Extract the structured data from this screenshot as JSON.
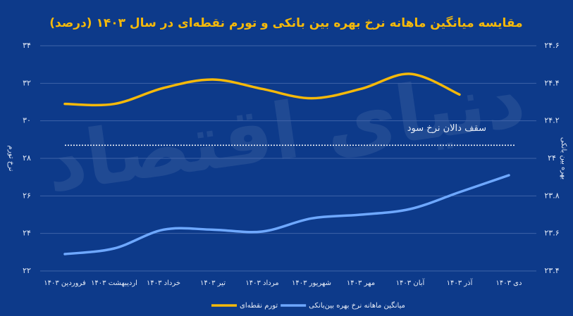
{
  "chart_data": {
    "type": "line",
    "title": "مقایسه میانگین ماهانه نرخ بهره بین بانکی و تورم نقطه‌ای در سال ۱۴۰۳ (درصد)",
    "watermark": "دنیای اقتصاد",
    "y_label": "نرخ تورم",
    "y2_label": "بهره بین بانکی",
    "categories": [
      "فروردین ۱۴۰۳",
      "اردیبهشت ۱۴۰۳",
      "خرداد ۱۴۰۳",
      "تیر ۱۴۰۳",
      "مرداد ۱۴۰۳",
      "شهریور ۱۴۰۳",
      "مهر ۱۴۰۳",
      "آبان ۱۴۰۳",
      "آذر ۱۴۰۳",
      "دی ۱۴۰۳"
    ],
    "series": [
      {
        "name": "تورم نقطه‌ای",
        "color": "#f5b90a",
        "axis": "y",
        "values": [
          30.9,
          30.9,
          31.75,
          32.2,
          31.7,
          31.2,
          31.7,
          32.5,
          31.4,
          null
        ]
      },
      {
        "name": "میانگین ماهانه نرخ بهره بین‌بانکی",
        "color": "#6ea8ff",
        "axis": "y2",
        "values": [
          23.49,
          23.52,
          23.62,
          23.62,
          23.61,
          23.68,
          23.7,
          23.73,
          23.82,
          23.91
        ]
      }
    ],
    "reference_line": {
      "label": "سقف دالان نرخ سود",
      "value": 24.07,
      "axis": "y2",
      "color": "#ffffff"
    },
    "ylim": [
      22,
      34
    ],
    "yticks": [
      {
        "value": 22,
        "label": "۲۲"
      },
      {
        "value": 24,
        "label": "۲۴"
      },
      {
        "value": 26,
        "label": "۲۶"
      },
      {
        "value": 28,
        "label": "۲۸"
      },
      {
        "value": 30,
        "label": "۳۰"
      },
      {
        "value": 32,
        "label": "۳۲"
      },
      {
        "value": 34,
        "label": "۳۴"
      }
    ],
    "y2lim": [
      23.4,
      24.6
    ],
    "y2ticks": [
      {
        "value": 23.4,
        "label": "۲۳.۴"
      },
      {
        "value": 23.6,
        "label": "۲۳.۶"
      },
      {
        "value": 23.8,
        "label": "۲۳.۸"
      },
      {
        "value": 24,
        "label": "۲۴"
      },
      {
        "value": 24.2,
        "label": "۲۴.۲"
      },
      {
        "value": 24.4,
        "label": "۲۴.۴"
      },
      {
        "value": 24.6,
        "label": "۲۴.۶"
      }
    ],
    "grid": true
  }
}
